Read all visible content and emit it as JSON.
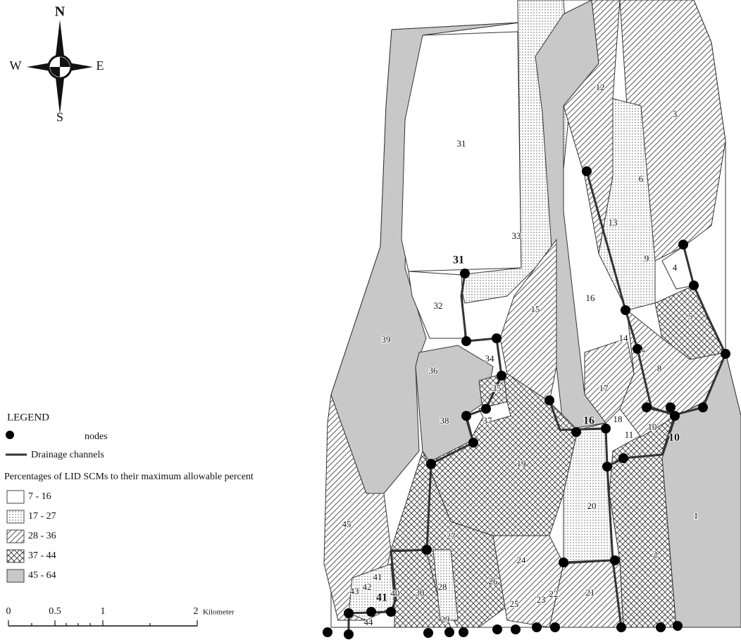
{
  "compass": {
    "north": "N",
    "south": "S",
    "east": "E",
    "west": "W"
  },
  "legend": {
    "title": "LEGEND",
    "nodes": "nodes",
    "channels": "Drainage channels",
    "subtitle": "Percentages of LID SCMs to their maximum allowable percent",
    "classes": [
      "7 - 16",
      "17 - 27",
      "28 - 36",
      "37 - 44",
      "45 - 64"
    ]
  },
  "scale_bar": {
    "ticks": [
      "0",
      "0.5",
      "1",
      "2"
    ],
    "unit": "Kilometer"
  },
  "map": {
    "subcatchments": [
      "1",
      "2",
      "3",
      "4",
      "5",
      "6",
      "7",
      "8",
      "9",
      "10",
      "11",
      "12",
      "13",
      "14",
      "15",
      "16",
      "17",
      "18",
      "19",
      "20",
      "21",
      "22",
      "23",
      "24",
      "25",
      "26",
      "27",
      "28",
      "29",
      "30",
      "31",
      "32",
      "33",
      "34",
      "35",
      "36",
      "37",
      "38",
      "39",
      "40",
      "41",
      "42",
      "43",
      "44",
      "45"
    ],
    "node_labels": [
      "31",
      "16",
      "10",
      "41"
    ]
  }
}
